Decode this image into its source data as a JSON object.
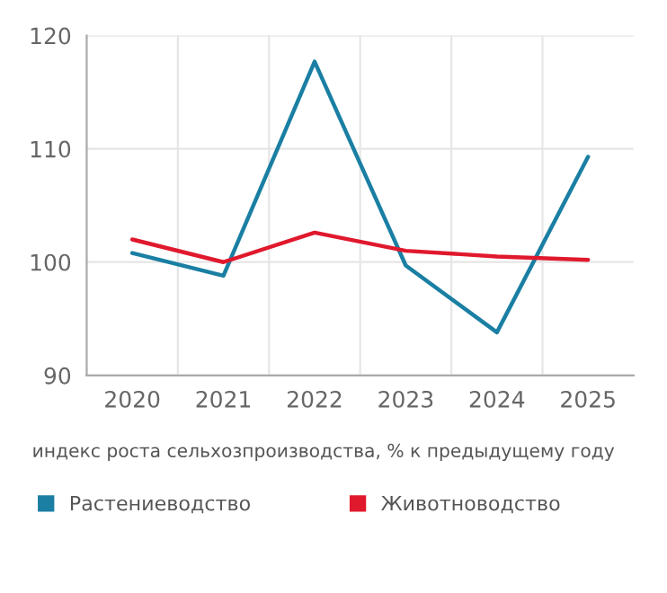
{
  "chart_data": {
    "type": "line",
    "categories": [
      "2020",
      "2021",
      "2022",
      "2023",
      "2024",
      "2025"
    ],
    "series": [
      {
        "name": "Растениеводство",
        "color": "#1a7fa3",
        "values": [
          100.8,
          98.8,
          117.7,
          99.7,
          93.8,
          109.3
        ]
      },
      {
        "name": "Животноводство",
        "color": "#e0192d",
        "values": [
          102.0,
          100.0,
          102.6,
          101.0,
          100.5,
          100.2
        ]
      }
    ],
    "ylim": [
      90,
      120
    ],
    "yticks": [
      90,
      100,
      110,
      120
    ],
    "xlabel": "индекс роста сельхозпроизводства, % к предыдущему году",
    "grid": true,
    "legend": "bottom"
  }
}
